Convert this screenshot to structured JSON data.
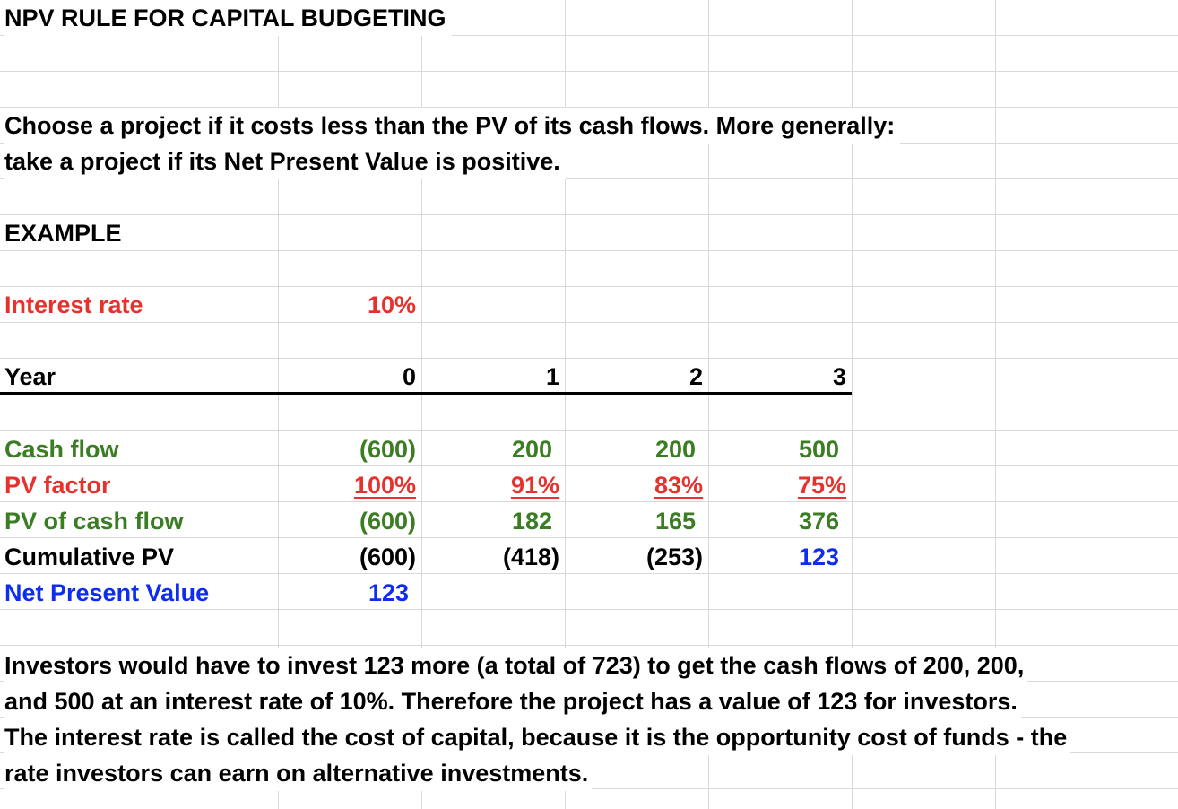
{
  "title": "NPV RULE FOR CAPITAL BUDGETING",
  "intro": [
    "Choose a project if it costs less than the PV of its cash flows.  More generally:",
    "take a project if its Net Present Value is positive."
  ],
  "example_label": "EXAMPLE",
  "interest_rate": {
    "label": "Interest rate",
    "value": "10%"
  },
  "year_row": {
    "label": "Year",
    "values": [
      "0",
      "1",
      "2",
      "3"
    ]
  },
  "rows": {
    "cash_flow": {
      "label": "Cash flow",
      "values": [
        "(600)",
        "200",
        "200",
        "500"
      ]
    },
    "pv_factor": {
      "label": "PV factor",
      "values": [
        "100%",
        "91%",
        "83%",
        "75%"
      ]
    },
    "pv_cash_flow": {
      "label": "PV of cash flow",
      "values": [
        "(600)",
        "182",
        "165",
        "376"
      ]
    },
    "cumulative_pv": {
      "label": "Cumulative PV",
      "values": [
        "(600)",
        "(418)",
        "(253)",
        "123"
      ]
    },
    "npv": {
      "label": "Net Present Value",
      "value": "123"
    }
  },
  "explanation": [
    "Investors would have to invest 123 more (a total of 723) to get the cash flows of 200, 200,",
    "and 500 at an interest rate of 10%.  Therefore the project has a value of 123 for investors.",
    "The interest rate is called the cost of capital, because it is the opportunity cost of funds - the",
    "rate investors can earn on alternative investments."
  ],
  "colors": {
    "red": "#e5322d",
    "green": "#3b7d23",
    "blue": "#0e2dee",
    "gridline": "#d9d9d9"
  }
}
